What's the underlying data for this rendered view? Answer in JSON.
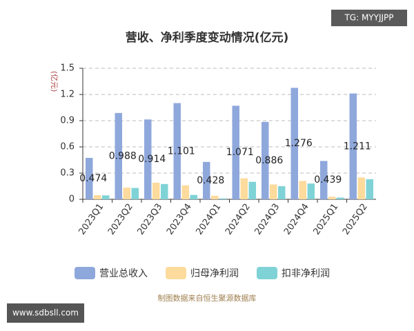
{
  "chart_data": {
    "type": "bar",
    "title": "营收、净利季度变动情况(亿元)",
    "y_label": "(亿元)",
    "source": "制图数据来自恒生聚源数据库",
    "categories": [
      "2023Q1",
      "2023Q2",
      "2023Q3",
      "2023Q4",
      "2024Q1",
      "2024Q2",
      "2024Q3",
      "2024Q4",
      "2025Q1",
      "2025Q2"
    ],
    "series": [
      {
        "name": "营业总收入",
        "color": "#8fa8dc",
        "values": [
          0.474,
          0.988,
          0.914,
          1.101,
          0.428,
          1.071,
          0.886,
          1.276,
          0.439,
          1.211
        ],
        "show_labels": true
      },
      {
        "name": "归母净利润",
        "color": "#fddb9c",
        "values": [
          0.047,
          0.134,
          0.19,
          0.16,
          0.04,
          0.24,
          0.17,
          0.21,
          0.03,
          0.25
        ],
        "show_labels": false
      },
      {
        "name": "扣非净利润",
        "color": "#7fd3d6",
        "values": [
          0.045,
          0.13,
          0.175,
          0.05,
          0.01,
          0.2,
          0.15,
          0.18,
          0.02,
          0.23
        ],
        "show_labels": false
      }
    ],
    "ylim": [
      0,
      1.5
    ],
    "yticks": [
      0,
      0.3,
      0.6,
      0.9,
      1.2,
      1.5
    ],
    "grid": true
  },
  "overlays": {
    "top_badge": "TG: MYYJJPP",
    "bottom_badge": "www.sdbsll.com"
  }
}
